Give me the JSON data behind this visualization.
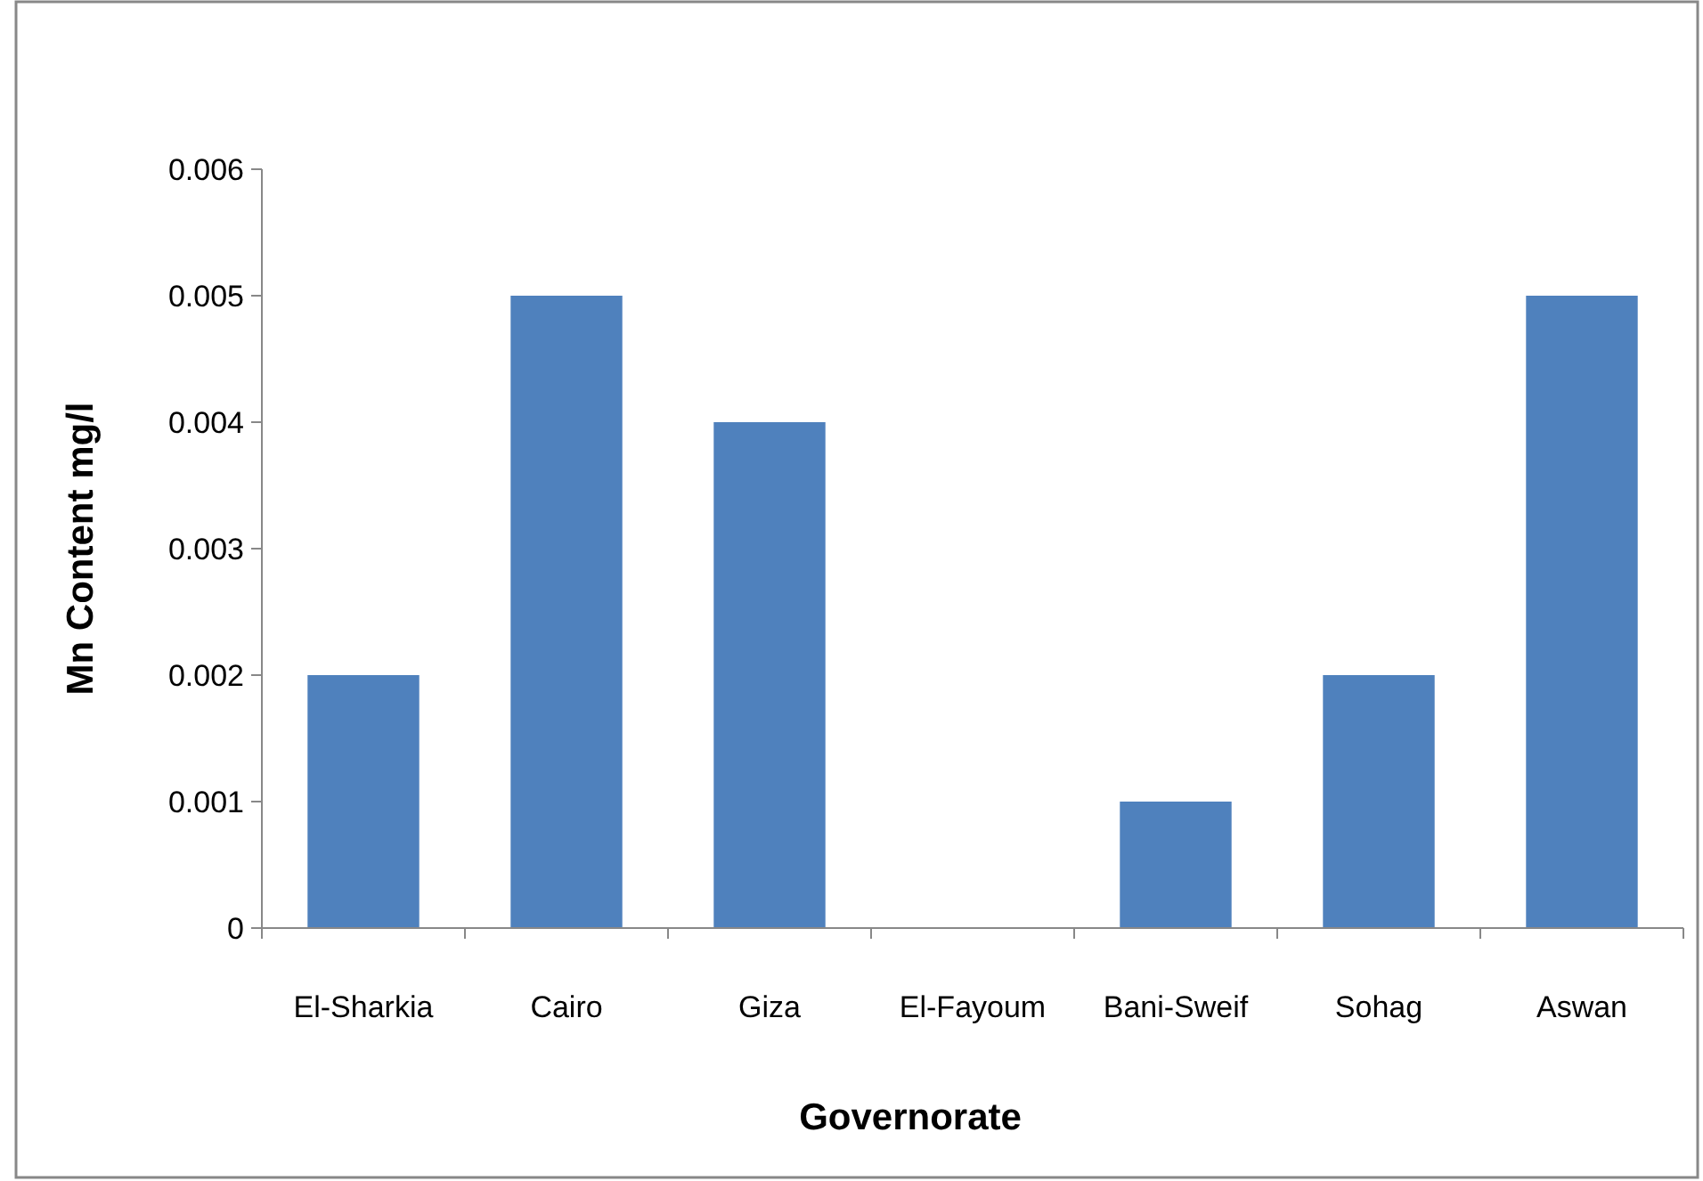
{
  "chart_data": {
    "type": "bar",
    "xlabel": "Governorate",
    "ylabel": "Mn Content mg/l",
    "categories": [
      "El-Sharkia",
      "Cairo",
      "Giza",
      "El-Fayoum",
      "Bani-Sweif",
      "Sohag",
      "Aswan"
    ],
    "values": [
      0.002,
      0.005,
      0.004,
      0,
      0.001,
      0.002,
      0.005
    ],
    "color": "#4f81bd",
    "ylim": [
      0,
      0.006
    ],
    "yticks": [
      0,
      0.001,
      0.002,
      0.003,
      0.004,
      0.005,
      0.006
    ],
    "grid": false
  }
}
